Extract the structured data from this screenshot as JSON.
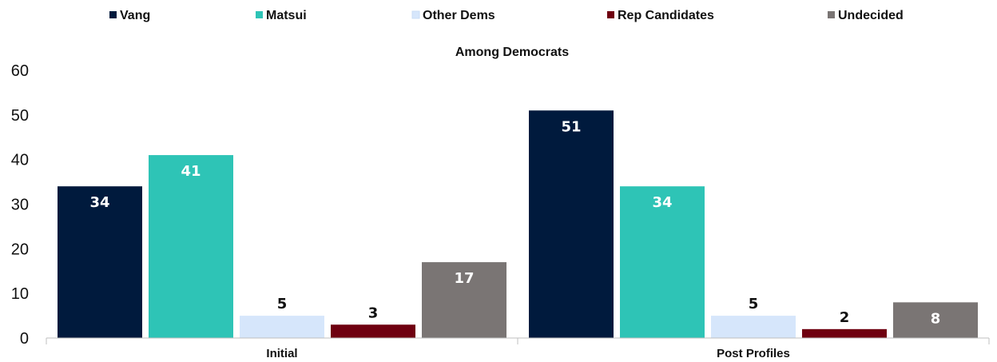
{
  "chart_data": {
    "type": "bar",
    "title": "Among Democrats",
    "categories": [
      "Initial",
      "Post Profiles"
    ],
    "series": [
      {
        "name": "Vang",
        "values": [
          34,
          51
        ],
        "color": "#001a3d",
        "label_color": "#ffffff"
      },
      {
        "name": "Matsui",
        "values": [
          41,
          34
        ],
        "color": "#2ec4b6",
        "label_color": "#ffffff"
      },
      {
        "name": "Other Dems",
        "values": [
          5,
          5
        ],
        "color": "#d6e6fb",
        "label_color": "#111111"
      },
      {
        "name": "Rep Candidates",
        "values": [
          3,
          2
        ],
        "color": "#6f0010",
        "label_color": "#111111"
      },
      {
        "name": "Undecided",
        "values": [
          17,
          8
        ],
        "color": "#7a7574",
        "label_color": "#ffffff"
      }
    ],
    "ylim": [
      0,
      60
    ],
    "yticks": [
      "0",
      "10",
      "20",
      "30",
      "40",
      "50",
      "60"
    ],
    "grid": false,
    "legend": "top"
  }
}
